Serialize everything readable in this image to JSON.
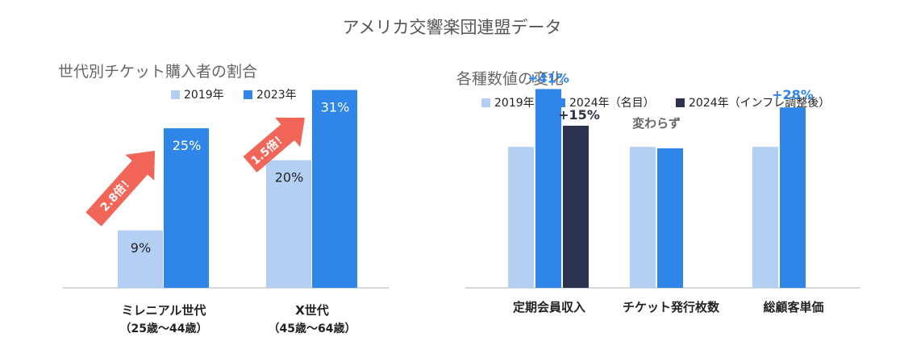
{
  "title": "アメリカ交響楽団連盟データ",
  "colors": {
    "light_blue": "#b3d0f3",
    "blue": "#2f86e8",
    "navy": "#2c324d",
    "arrow_red": "#f26659",
    "text_dark": "#222222",
    "text_gray": "#666666"
  },
  "chart_data": [
    {
      "type": "bar",
      "title": "世代別チケット購入者の割合",
      "categories": [
        {
          "label": "ミレニアル世代",
          "sublabel": "（25歳〜44歳）"
        },
        {
          "label": "X世代",
          "sublabel": "（45歳〜64歳）"
        }
      ],
      "series": [
        {
          "name": "2019年",
          "color": "#b3d0f3",
          "values": [
            9,
            20
          ],
          "data_labels": [
            "9%",
            "20%"
          ]
        },
        {
          "name": "2023年",
          "color": "#2f86e8",
          "values": [
            25,
            31
          ],
          "data_labels": [
            "25%",
            "31%"
          ]
        }
      ],
      "ylim": [
        0,
        36
      ],
      "unit": "%",
      "legend": "top-center",
      "grid": false,
      "annotations": [
        "2.8倍！",
        "1.5倍！"
      ]
    },
    {
      "type": "bar",
      "title": "各種数値の変化",
      "categories": [
        {
          "label": "定期会員収入"
        },
        {
          "label": "チケット発行枚数"
        },
        {
          "label": "総顧客単価"
        }
      ],
      "series": [
        {
          "name": "2019年",
          "color": "#b3d0f3",
          "values": [
            100,
            100,
            100
          ]
        },
        {
          "name": "2024年（名目）",
          "color": "#2f86e8",
          "values": [
            141,
            99,
            128
          ]
        },
        {
          "name": "2024年（インフレ調整後）",
          "color": "#2c324d",
          "values": [
            115,
            null,
            null
          ]
        }
      ],
      "ylim": [
        0,
        163
      ],
      "legend": "top-left",
      "grid": false,
      "annotations": [
        {
          "text": "+41%",
          "color": "#2f86e8"
        },
        {
          "text": "+15%",
          "color": "#2c324d"
        },
        {
          "text": "変わらず",
          "color": "#666666"
        },
        {
          "text": "+28%",
          "color": "#2f86e8"
        }
      ]
    }
  ]
}
